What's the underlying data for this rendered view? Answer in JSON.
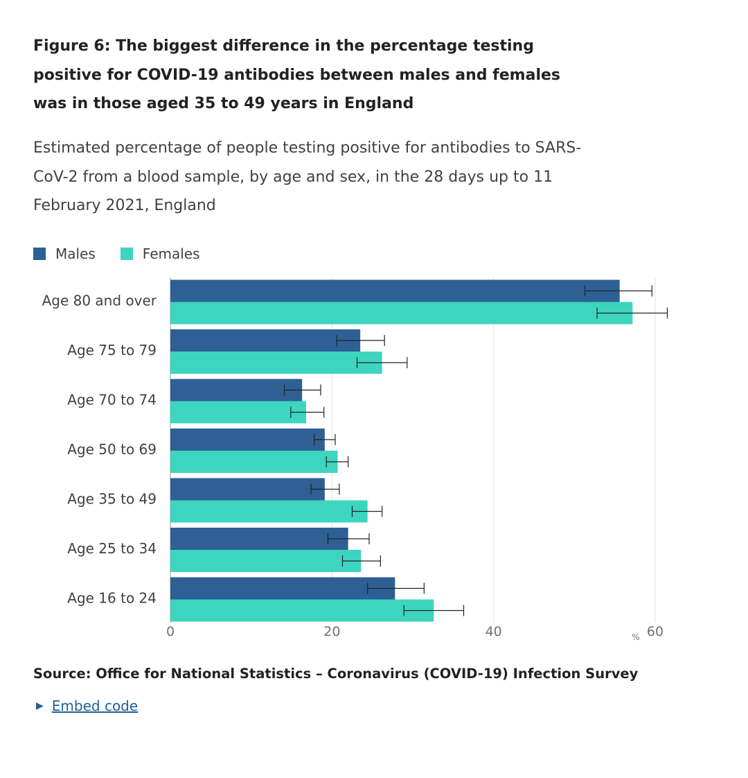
{
  "colors": {
    "males": "#2e6095",
    "females": "#3dd5c0",
    "grid": "#e3e3e3",
    "axis": "#bcbcbc",
    "error": "#222222",
    "link": "#206095"
  },
  "title": "Figure 6: The biggest difference in the percentage testing positive for COVID-19 antibodies between males and females was in those aged 35 to 49 years in England",
  "subtitle": "Estimated percentage of people testing positive for antibodies to SARS-CoV-2 from a blood sample, by age and sex, in the 28 days up to 11 February 2021, England",
  "source": "Source: Office for National Statistics – Coronavirus (COVID-19) Infection Survey",
  "embed": {
    "icon": "triangle-right-icon",
    "label": "Embed code"
  },
  "chart_data": {
    "type": "bar",
    "orientation": "horizontal",
    "title": "Figure 6: The biggest difference in the percentage testing positive for COVID-19 antibodies between males and females was in those aged 35 to 49 years in England",
    "xlabel": "%",
    "ylabel": "",
    "xlim": [
      0,
      60
    ],
    "xticks": [
      0,
      20,
      40,
      60
    ],
    "grid": true,
    "legend_position": "top-left",
    "categories": [
      "Age 80 and over",
      "Age 75 to 79",
      "Age 70 to 74",
      "Age 50 to 69",
      "Age 35 to 49",
      "Age 25 to 34",
      "Age 16 to 24"
    ],
    "series": [
      {
        "name": "Males",
        "values": [
          55.6,
          23.5,
          16.3,
          19.1,
          19.1,
          22.0,
          27.8
        ],
        "lower": [
          51.3,
          20.6,
          14.1,
          17.8,
          17.4,
          19.5,
          24.4
        ],
        "upper": [
          59.6,
          26.5,
          18.6,
          20.4,
          20.9,
          24.6,
          31.4
        ]
      },
      {
        "name": "Females",
        "values": [
          57.2,
          26.2,
          16.8,
          20.7,
          24.4,
          23.6,
          32.6
        ],
        "lower": [
          52.8,
          23.1,
          14.9,
          19.3,
          22.5,
          21.3,
          28.9
        ],
        "upper": [
          61.5,
          29.3,
          19.0,
          22.0,
          26.2,
          26.0,
          36.3
        ]
      }
    ]
  }
}
